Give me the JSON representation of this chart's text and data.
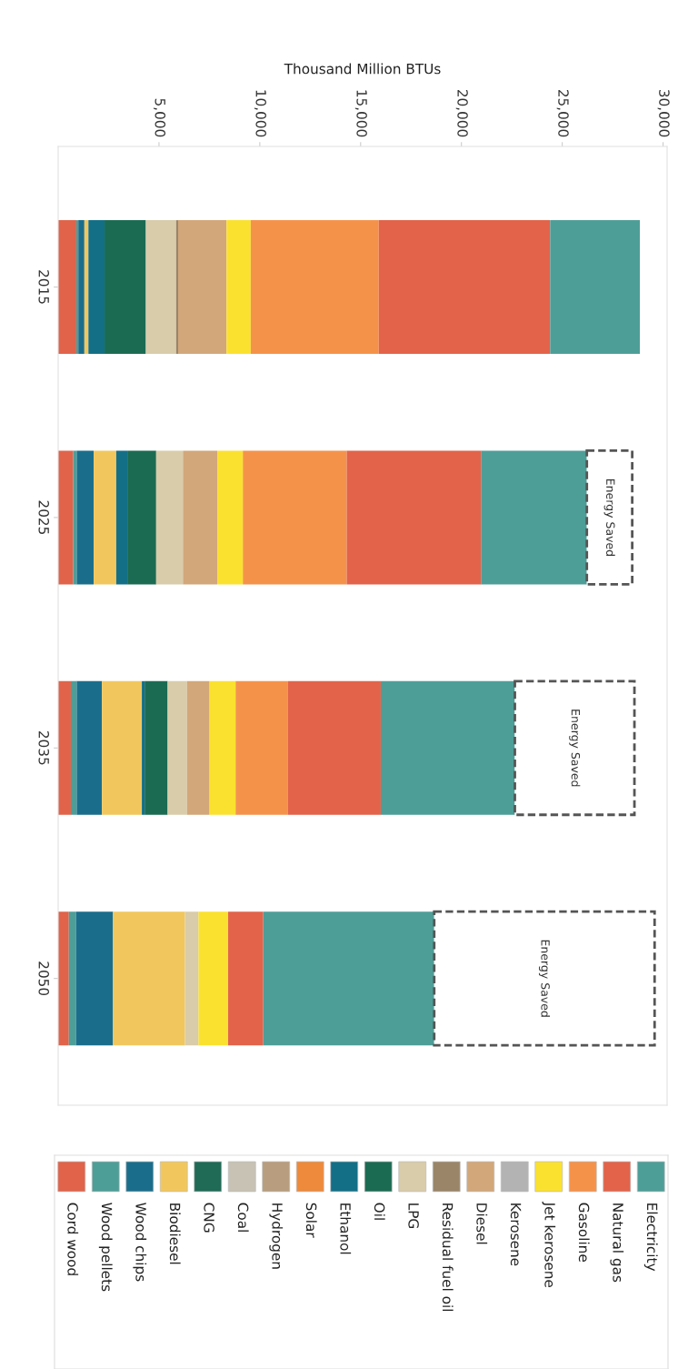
{
  "chart_data": {
    "type": "bar",
    "orientation": "horizontal",
    "stacked": true,
    "xlabel": "Thousand Million BTUs",
    "categories": [
      "2015",
      "2025",
      "2035",
      "2050"
    ],
    "xlim": [
      0,
      30200
    ],
    "xticks": [
      {
        "value": 5000,
        "label": "5,000"
      },
      {
        "value": 10000,
        "label": "10,000"
      },
      {
        "value": 15000,
        "label": "15,000"
      },
      {
        "value": 20000,
        "label": "20,000"
      },
      {
        "value": 25000,
        "label": "25,000"
      },
      {
        "value": 30000,
        "label": "30,000"
      }
    ],
    "grid": false,
    "legend": "bottom",
    "series": [
      {
        "name": "Cord wood",
        "color": "#e0634a",
        "values": [
          900,
          740,
          630,
          530
        ]
      },
      {
        "name": "Wood pellets",
        "color": "#4e9e98",
        "values": [
          100,
          180,
          290,
          350
        ]
      },
      {
        "name": "Wood chips",
        "color": "#1a6e8c",
        "values": [
          300,
          840,
          1250,
          1840
        ]
      },
      {
        "name": "Biodiesel",
        "color": "#f1c75d",
        "values": [
          200,
          1120,
          1980,
          3570
        ]
      },
      {
        "name": "CNG",
        "color": "#1f6b55",
        "values": [
          0,
          0,
          0,
          0
        ]
      },
      {
        "name": "Coal",
        "color": "#c8c2b4",
        "values": [
          0,
          0,
          0,
          0
        ]
      },
      {
        "name": "Hydrogen",
        "color": "#b89e7e",
        "values": [
          0,
          0,
          0,
          0
        ]
      },
      {
        "name": "Solar",
        "color": "#ee8a3c",
        "values": [
          0,
          0,
          0,
          0
        ]
      },
      {
        "name": "Ethanol",
        "color": "#136f86",
        "values": [
          800,
          550,
          140,
          0
        ]
      },
      {
        "name": "Oil",
        "color": "#1b6b52",
        "values": [
          2050,
          1430,
          1140,
          0
        ]
      },
      {
        "name": "LPG",
        "color": "#d9ccaa",
        "values": [
          1500,
          1330,
          960,
          670
        ]
      },
      {
        "name": "Residual fuel oil",
        "color": "#9a8568",
        "values": [
          100,
          0,
          0,
          0
        ]
      },
      {
        "name": "Diesel",
        "color": "#d2a77a",
        "values": [
          2400,
          1700,
          1120,
          0
        ]
      },
      {
        "name": "Kerosene",
        "color": "#b3b3b3",
        "values": [
          0,
          0,
          0,
          0
        ]
      },
      {
        "name": "Jet kerosene",
        "color": "#fbe12f",
        "values": [
          1200,
          1270,
          1290,
          1470
        ]
      },
      {
        "name": "Gasoline",
        "color": "#f5924a",
        "values": [
          6350,
          5150,
          2600,
          0
        ]
      },
      {
        "name": "Natural gas",
        "color": "#e2634a",
        "values": [
          8500,
          6660,
          4600,
          1740
        ]
      },
      {
        "name": "Electricity",
        "color": "#4e9e98",
        "values": [
          4450,
          5250,
          6650,
          8480
        ]
      },
      {
        "name": "Energy Saved",
        "color": "#ffffff",
        "line_style": "dashed",
        "values": [
          0,
          2250,
          5930,
          10930
        ]
      }
    ]
  }
}
